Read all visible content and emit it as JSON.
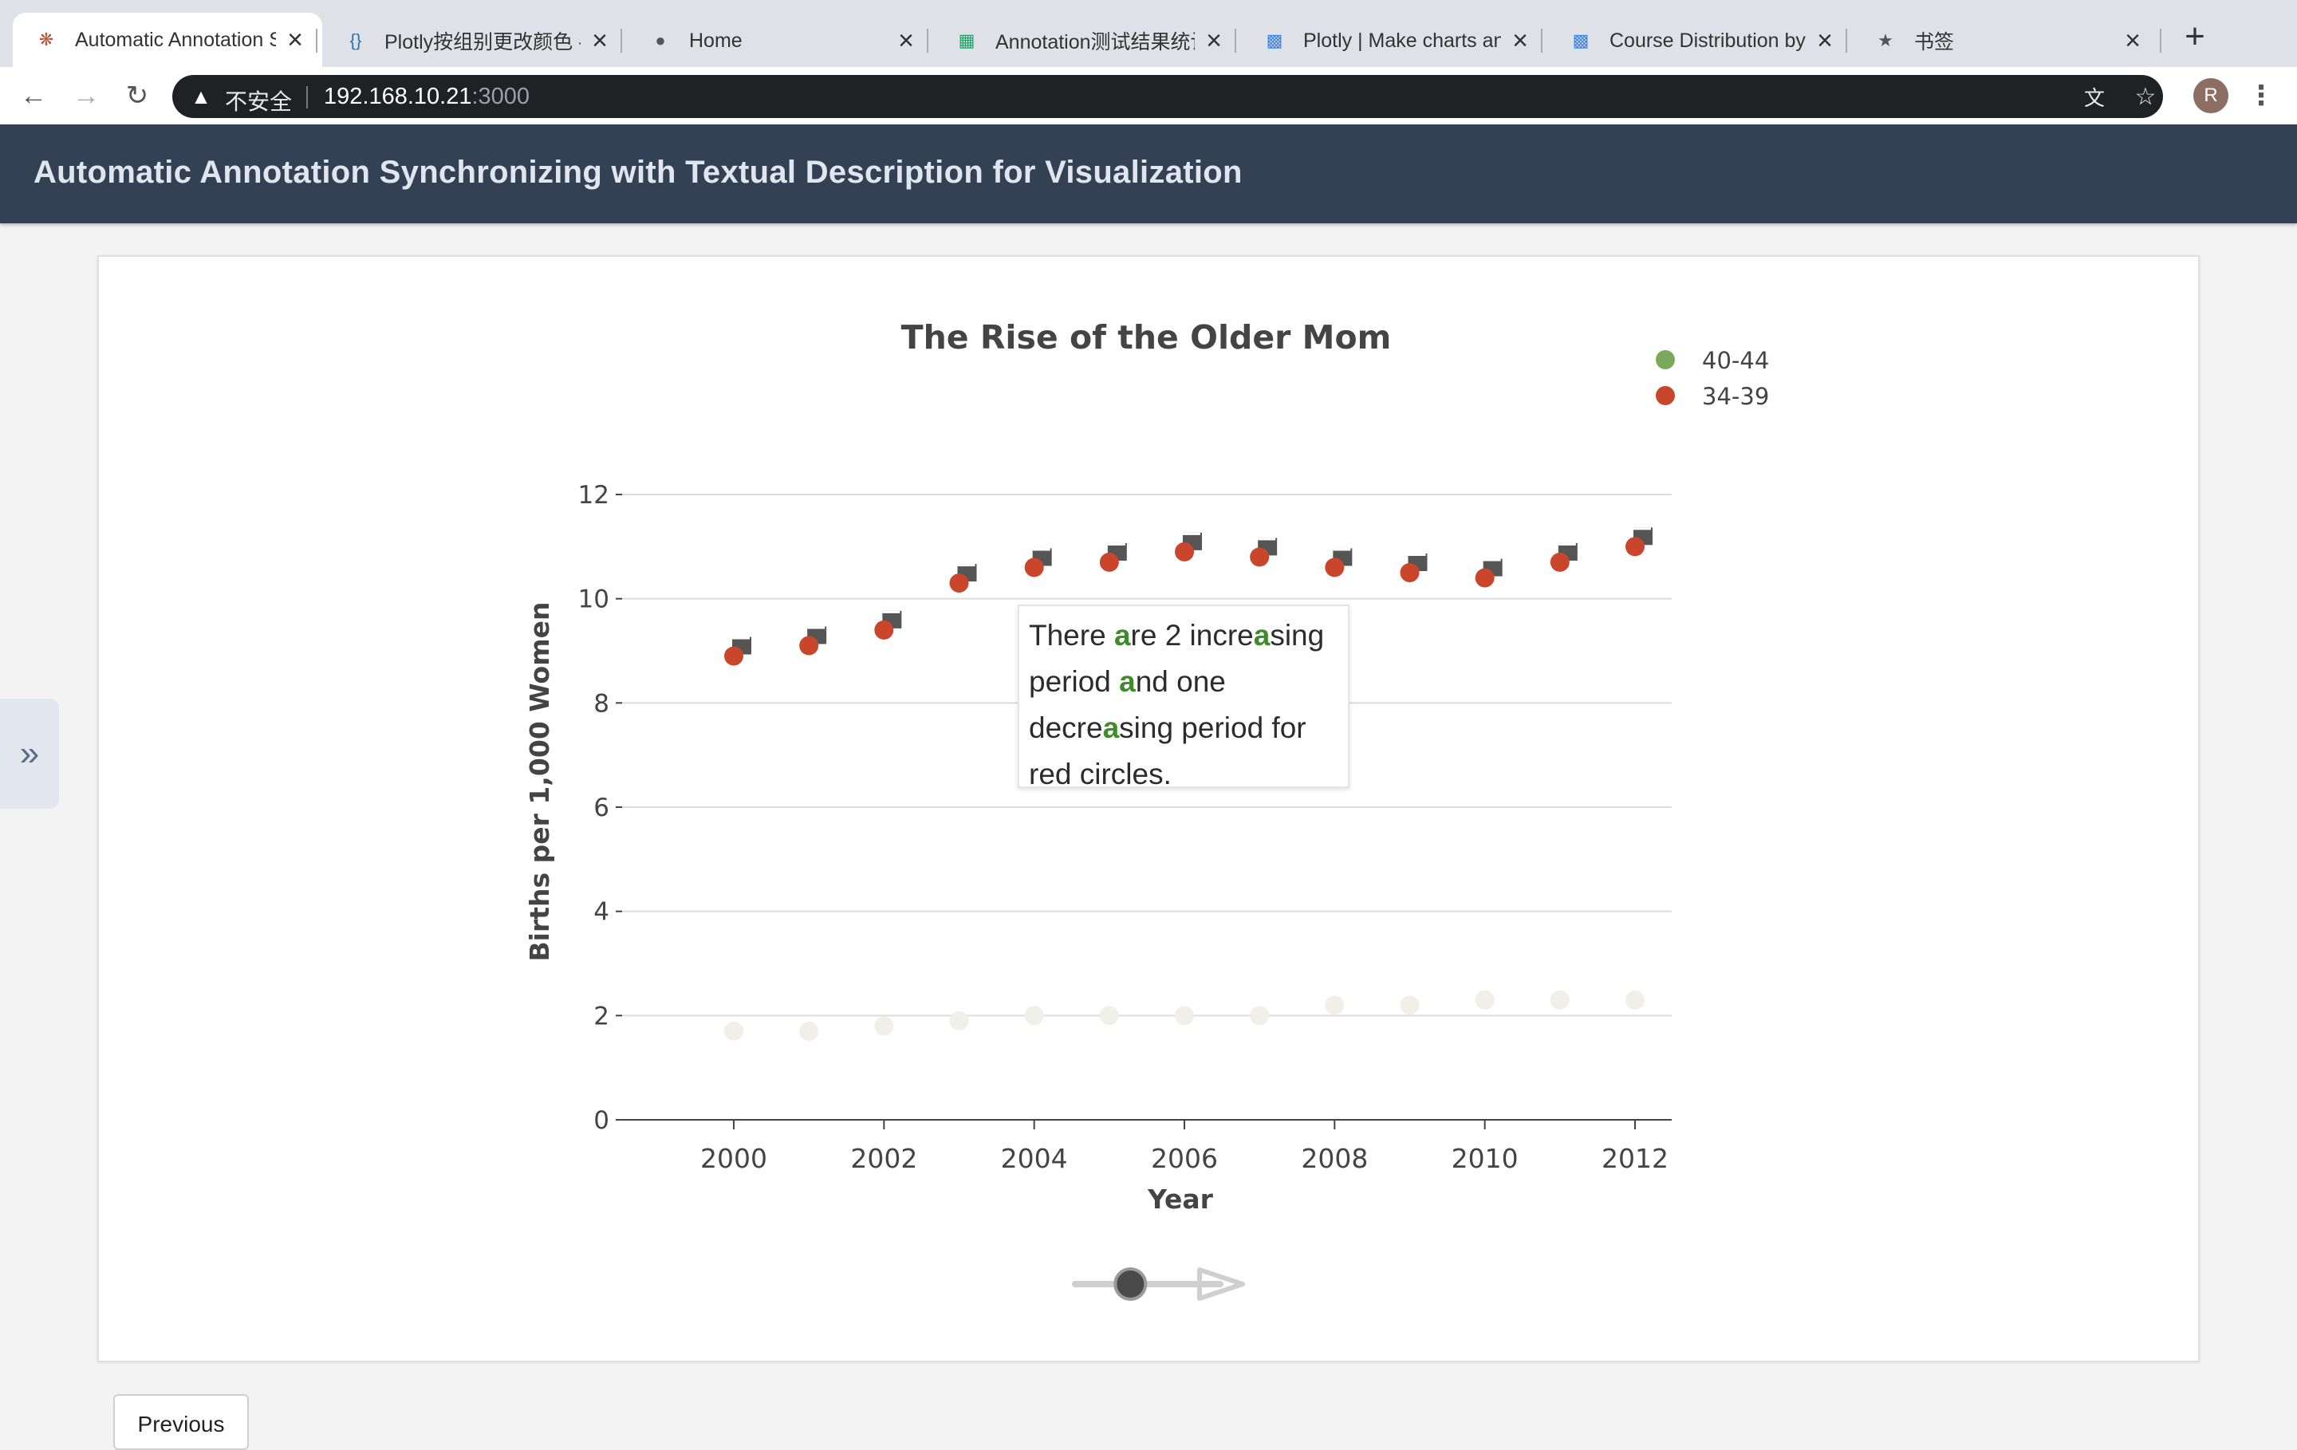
{
  "browser": {
    "tabs": [
      {
        "title": "Automatic Annotation S",
        "icon": "app-logo-icon"
      },
      {
        "title": "Plotly按组别更改颜色 -",
        "icon": "code-braces-icon"
      },
      {
        "title": "Home",
        "icon": "od-logo-icon"
      },
      {
        "title": "Annotation测试结果统计",
        "icon": "spreadsheet-icon"
      },
      {
        "title": "Plotly | Make charts and",
        "icon": "chart-bars-icon"
      },
      {
        "title": "Course Distribution by F",
        "icon": "chart-bars-icon"
      },
      {
        "title": "书签",
        "icon": "star-icon"
      }
    ],
    "security_label": "不安全",
    "url_host": "192.168.10.21",
    "url_port": ":3000",
    "avatar_letter": "R"
  },
  "app": {
    "title": "Automatic Annotation Synchronizing with Textual Description for Visualization",
    "previous_button": "Previous"
  },
  "annotation": {
    "segments": [
      {
        "text": "There ",
        "hl": false
      },
      {
        "text": "a",
        "hl": true
      },
      {
        "text": "re 2 incre",
        "hl": false
      },
      {
        "text": "a",
        "hl": true
      },
      {
        "text": "sing period ",
        "hl": false
      },
      {
        "text": "a",
        "hl": true
      },
      {
        "text": "nd one decre",
        "hl": false
      },
      {
        "text": "a",
        "hl": true
      },
      {
        "text": "sing period for red circles.",
        "hl": false
      }
    ],
    "highlight_color": "#3e8a2c"
  },
  "chart_data": {
    "type": "scatter",
    "title": "The Rise of the Older Mom",
    "xlabel": "Year",
    "ylabel": "Births per 1,000 Women",
    "xlim": [
      1998.5,
      2012.5
    ],
    "ylim": [
      0,
      12
    ],
    "x_ticks": [
      2000,
      2002,
      2004,
      2006,
      2008,
      2010,
      2012
    ],
    "y_ticks": [
      0,
      2,
      4,
      6,
      8,
      10,
      12
    ],
    "grid": true,
    "legend_position": "top-right",
    "x": [
      2000,
      2001,
      2002,
      2003,
      2004,
      2005,
      2006,
      2007,
      2008,
      2009,
      2010,
      2011,
      2012
    ],
    "series": [
      {
        "name": "40-44",
        "color": "#7aa95c",
        "faded": true,
        "values": [
          1.7,
          1.7,
          1.8,
          1.9,
          2.0,
          2.0,
          2.0,
          2.0,
          2.2,
          2.2,
          2.3,
          2.3,
          2.3
        ]
      },
      {
        "name": "34-39",
        "color": "#c9462c",
        "faded": false,
        "values": [
          8.9,
          9.1,
          9.4,
          10.3,
          10.6,
          10.7,
          10.9,
          10.8,
          10.6,
          10.5,
          10.4,
          10.7,
          11.0
        ]
      }
    ],
    "slider_value": 0.33
  }
}
